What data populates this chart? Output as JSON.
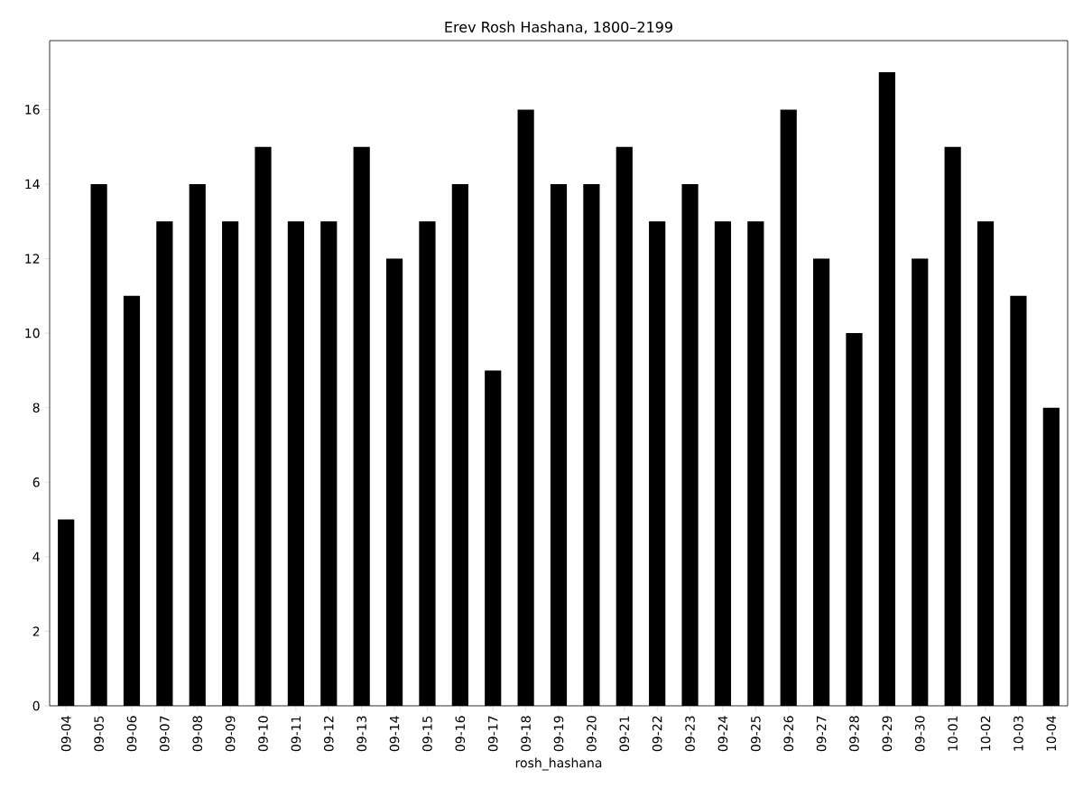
{
  "chart_data": {
    "type": "bar",
    "title": "Erev Rosh Hashana, 1800–2199",
    "xlabel": "rosh_hashana",
    "categories": [
      "09-04",
      "09-05",
      "09-06",
      "09-07",
      "09-08",
      "09-09",
      "09-10",
      "09-11",
      "09-12",
      "09-13",
      "09-14",
      "09-15",
      "09-16",
      "09-17",
      "09-18",
      "09-19",
      "09-20",
      "09-21",
      "09-22",
      "09-23",
      "09-24",
      "09-25",
      "09-26",
      "09-27",
      "09-28",
      "09-29",
      "09-30",
      "10-01",
      "10-02",
      "10-03",
      "10-04"
    ],
    "values": [
      5,
      14,
      11,
      13,
      14,
      13,
      15,
      13,
      13,
      15,
      12,
      13,
      14,
      9,
      16,
      14,
      14,
      15,
      13,
      14,
      13,
      13,
      16,
      12,
      10,
      17,
      12,
      15,
      13,
      11,
      8
    ],
    "color": "#000000",
    "ylim": [
      0,
      17.85
    ],
    "yticks": [
      0,
      2,
      4,
      6,
      8,
      10,
      12,
      14,
      16
    ],
    "grid": false
  }
}
